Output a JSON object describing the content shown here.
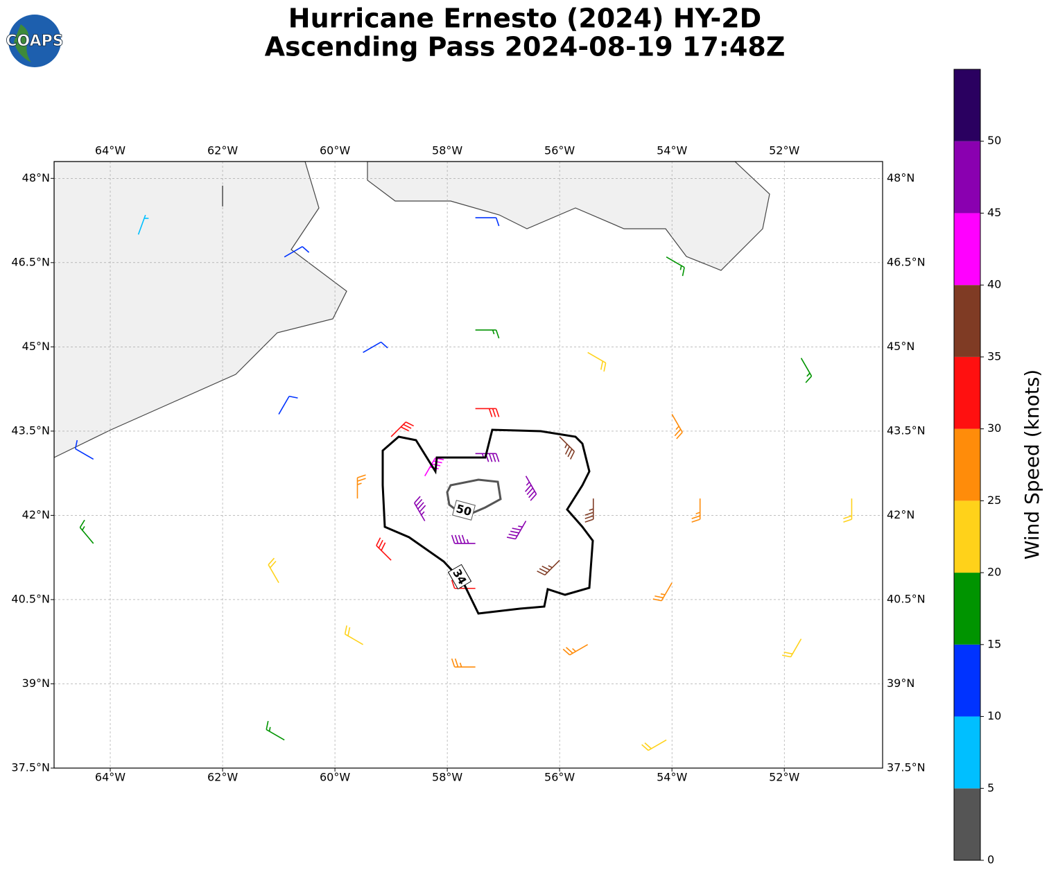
{
  "chart_data": {
    "type": "barbs",
    "logo": "COAPS",
    "title": "Hurricane Ernesto (2024) HY-2D",
    "subtitle": "Ascending Pass 2024-08-19 17:48Z",
    "xlim": [
      -65,
      -50.25
    ],
    "ylim": [
      37.5,
      48.3
    ],
    "xticks": [
      {
        "value": -64,
        "label": "64°W"
      },
      {
        "value": -62,
        "label": "62°W"
      },
      {
        "value": -60,
        "label": "60°W"
      },
      {
        "value": -58,
        "label": "58°W"
      },
      {
        "value": -56,
        "label": "56°W"
      },
      {
        "value": -54,
        "label": "54°W"
      },
      {
        "value": -52,
        "label": "52°W"
      }
    ],
    "yticks": [
      {
        "value": 37.5,
        "label": "37.5°N"
      },
      {
        "value": 39,
        "label": "39°N"
      },
      {
        "value": 40.5,
        "label": "40.5°N"
      },
      {
        "value": 42,
        "label": "42°N"
      },
      {
        "value": 43.5,
        "label": "43.5°N"
      },
      {
        "value": 45,
        "label": "45°N"
      },
      {
        "value": 46.5,
        "label": "46.5°N"
      },
      {
        "value": 48,
        "label": "48°N"
      }
    ],
    "grid": true,
    "contours": [
      {
        "level": 34
      },
      {
        "level": 50
      }
    ],
    "colorbar": {
      "label": "Wind Speed (knots)",
      "bounds": [
        0,
        5,
        10,
        15,
        20,
        25,
        30,
        35,
        40,
        45,
        50,
        55
      ],
      "colors": [
        "#555555",
        "#00bfff",
        "#0033ff",
        "#009400",
        "#ffd21a",
        "#ff8c0a",
        "#ff1010",
        "#7f3b24",
        "#ff00ff",
        "#8a00b0",
        "#2a0060"
      ],
      "ticks": [
        0,
        5,
        10,
        15,
        20,
        25,
        30,
        35,
        40,
        45,
        50
      ]
    },
    "barbs": {
      "lon": [
        -57.5,
        -56.6,
        -56.6,
        -57.5,
        -58.4,
        -58.4,
        -57.5,
        -56.0,
        -55.4,
        -56.0,
        -57.5,
        -59.0,
        -59.6,
        -59.0,
        -57.5,
        -55.5,
        -54.0,
        -53.5,
        -54.0,
        -55.5,
        -57.5,
        -59.5,
        -61.0,
        -61.0,
        -59.5,
        -57.5,
        -54.1,
        -51.7,
        -50.8,
        -51.7,
        -54.1,
        -60.9,
        -60.9,
        -64.3,
        -64.3,
        -62.0,
        -63.5
      ],
      "lat": [
        43.1,
        42.7,
        41.9,
        41.5,
        41.9,
        42.7,
        43.9,
        43.4,
        42.3,
        41.2,
        40.7,
        41.2,
        42.3,
        43.4,
        45.3,
        44.9,
        43.8,
        42.3,
        40.8,
        39.7,
        39.3,
        39.7,
        40.8,
        43.8,
        44.9,
        47.3,
        46.6,
        44.8,
        42.3,
        39.8,
        38.0,
        38.0,
        46.6,
        41.5,
        43.0,
        47.5,
        47.0
      ],
      "speed": [
        45,
        45,
        47,
        45,
        45,
        42,
        32,
        37,
        37,
        37,
        32,
        32,
        27,
        32,
        17,
        22,
        27,
        27,
        27,
        27,
        27,
        22,
        22,
        12,
        12,
        12,
        17,
        17,
        22,
        22,
        22,
        17,
        12,
        17,
        12,
        3,
        8
      ],
      "dir": [
        90,
        150,
        210,
        270,
        330,
        30,
        90,
        135,
        180,
        225,
        270,
        315,
        0,
        45,
        90,
        120,
        150,
        180,
        210,
        240,
        270,
        300,
        330,
        30,
        60,
        90,
        120,
        150,
        180,
        210,
        240,
        300,
        60,
        320,
        300,
        0,
        20
      ]
    }
  }
}
